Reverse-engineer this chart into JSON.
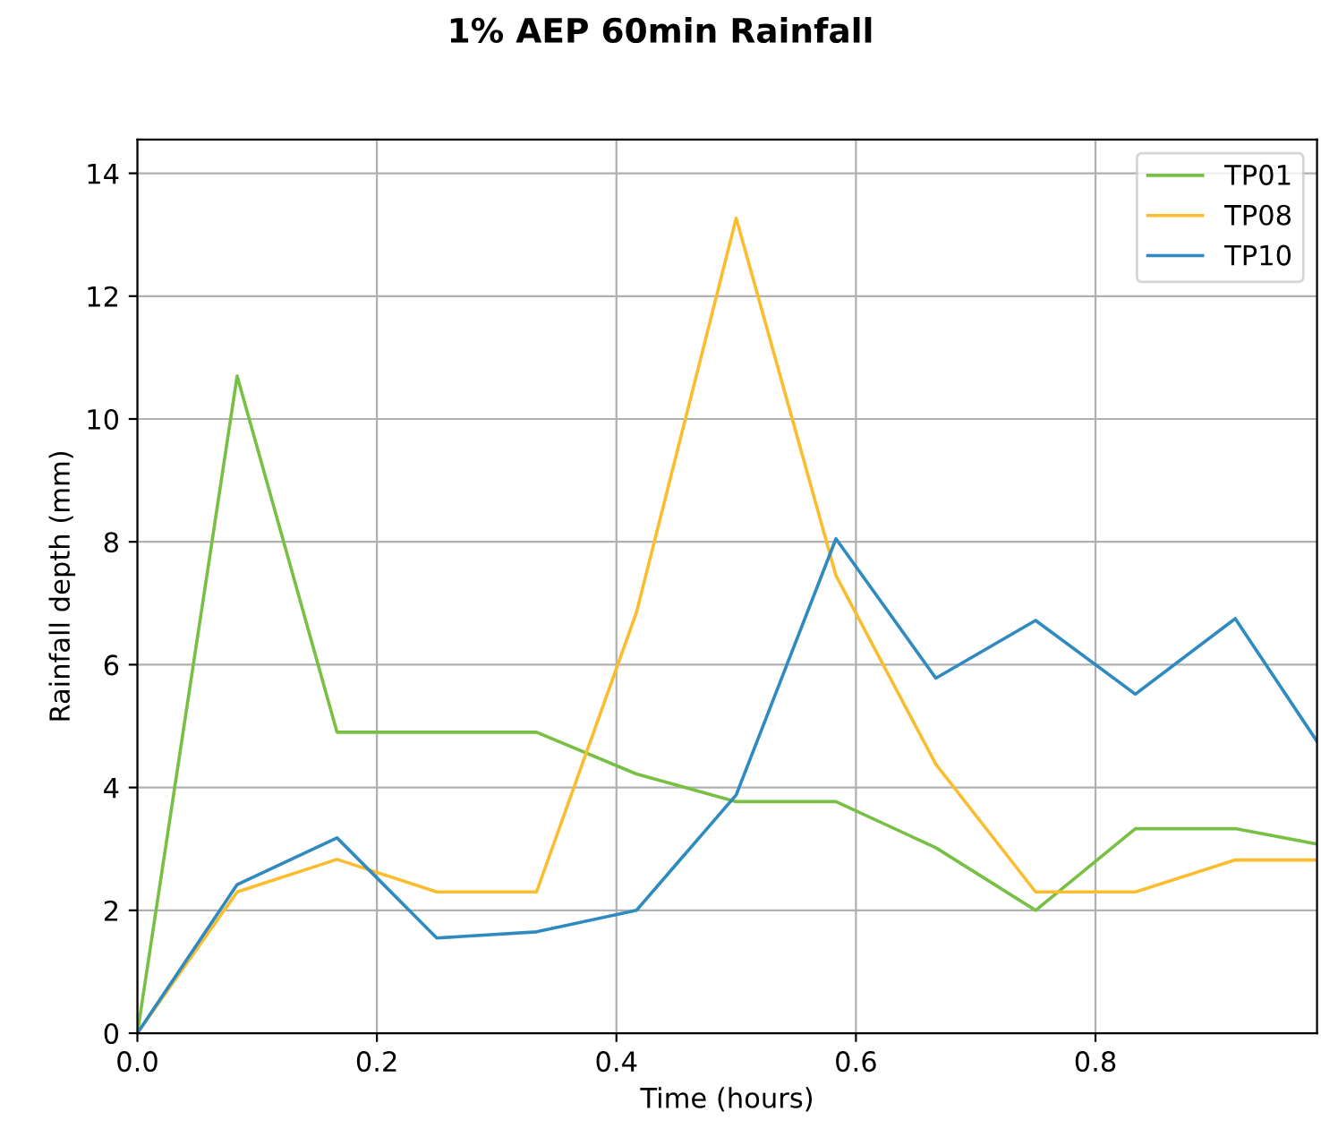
{
  "chart_data": {
    "type": "line",
    "title": "1% AEP 60min Rainfall",
    "xlabel": "Time (hours)",
    "ylabel": "Rainfall depth (mm)",
    "x": [
      0,
      0.0833,
      0.1667,
      0.25,
      0.3333,
      0.4167,
      0.5,
      0.5833,
      0.6667,
      0.75,
      0.8333,
      0.9167,
      0.985
    ],
    "series": [
      {
        "name": "TP01",
        "color": "#77c043",
        "values": [
          0,
          10.7,
          4.9,
          4.9,
          4.9,
          4.22,
          3.77,
          3.77,
          3.02,
          2.0,
          3.33,
          3.33,
          3.08
        ]
      },
      {
        "name": "TP08",
        "color": "#fbbc2d",
        "values": [
          0,
          2.3,
          2.83,
          2.3,
          2.3,
          6.85,
          13.27,
          7.45,
          4.38,
          2.3,
          2.3,
          2.82,
          2.82
        ]
      },
      {
        "name": "TP10",
        "color": "#2f8bbf",
        "values": [
          0,
          2.42,
          3.18,
          1.55,
          1.65,
          2.0,
          3.88,
          8.05,
          5.78,
          6.72,
          5.52,
          6.75,
          4.75
        ]
      }
    ],
    "xlim": [
      0,
      0.985
    ],
    "xticks": [
      {
        "value": 0,
        "label": "0.0"
      },
      0.2,
      0.4,
      0.6,
      0.8
    ],
    "ylim": [
      0,
      14.55
    ],
    "yticks": [
      0,
      2,
      4,
      6,
      8,
      10,
      12,
      14
    ],
    "grid": true,
    "legend": "top right",
    "marker": "none",
    "line_style": "solid"
  }
}
